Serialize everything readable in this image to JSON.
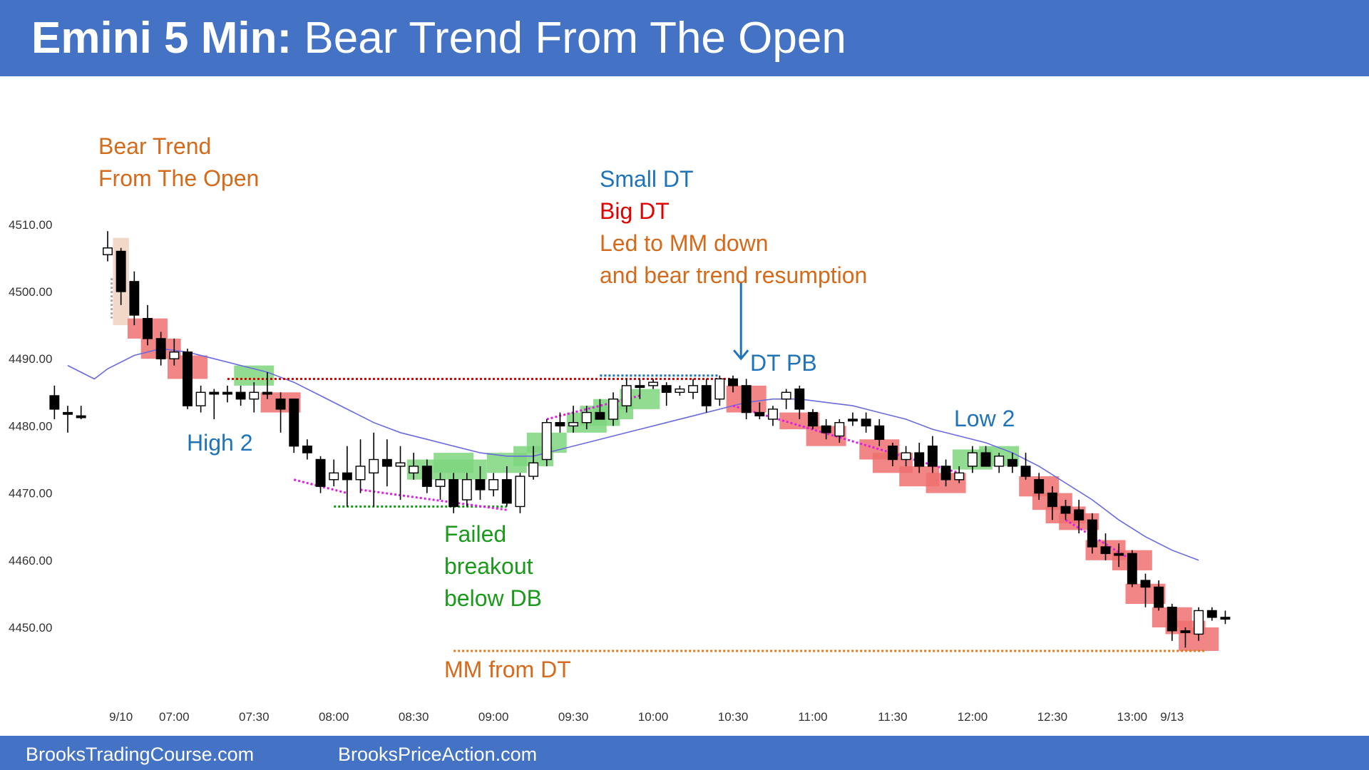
{
  "header": {
    "title_bold": "Emini 5 Min:",
    "title_rest": " Bear Trend From The Open"
  },
  "footer": {
    "left": "BrooksTradingCourse.com",
    "right": "BrooksPriceAction.com"
  },
  "colors": {
    "banner": "#4472c4",
    "bull_body": "#ffffff",
    "bear_body": "#000000",
    "bear_highlight": "#f07070",
    "bull_highlight": "#7ed67e",
    "ema": "#6a6ae0",
    "orange_text": "#d46a1a",
    "blue_text": "#1f73b8",
    "red_text": "#e00000",
    "green_text": "#1a9a1a",
    "magenta_dots": "#e020e0"
  },
  "chart_data": {
    "type": "candlestick",
    "title": "",
    "xlabel": "",
    "ylabel": "",
    "ylim": [
      4442,
      4517
    ],
    "y_ticks": [
      "4450.00",
      "4460.00",
      "4470.00",
      "4480.00",
      "4490.00",
      "4500.00",
      "4510.00"
    ],
    "x_ticks": [
      {
        "label": "9/10",
        "bar": 1
      },
      {
        "label": "07:00",
        "bar": 5
      },
      {
        "label": "07:30",
        "bar": 11
      },
      {
        "label": "08:00",
        "bar": 17
      },
      {
        "label": "08:30",
        "bar": 23
      },
      {
        "label": "09:00",
        "bar": 29
      },
      {
        "label": "09:30",
        "bar": 35
      },
      {
        "label": "10:00",
        "bar": 41
      },
      {
        "label": "10:30",
        "bar": 47
      },
      {
        "label": "11:00",
        "bar": 53
      },
      {
        "label": "11:30",
        "bar": 59
      },
      {
        "label": "12:00",
        "bar": 65
      },
      {
        "label": "12:30",
        "bar": 71
      },
      {
        "label": "13:00",
        "bar": 77
      },
      {
        "label": "9/13",
        "bar": 80
      }
    ],
    "previous_day_bars": [
      {
        "o": 4484.5,
        "h": 4486,
        "l": 4481,
        "c": 4482.5
      },
      {
        "o": 4482,
        "h": 4483,
        "l": 4479,
        "c": 4482
      },
      {
        "o": 4481.5,
        "h": 4483,
        "l": 4481,
        "c": 4481.5
      }
    ],
    "bars": [
      {
        "o": 4505.5,
        "h": 4509,
        "l": 4504.5,
        "c": 4506.5
      },
      {
        "o": 4506,
        "h": 4506.5,
        "l": 4498,
        "c": 4500
      },
      {
        "o": 4501.5,
        "h": 4503,
        "l": 4495,
        "c": 4496.5
      },
      {
        "o": 4496,
        "h": 4498,
        "l": 4492,
        "c": 4493
      },
      {
        "o": 4493,
        "h": 4494,
        "l": 4489,
        "c": 4490
      },
      {
        "o": 4490,
        "h": 4493,
        "l": 4489,
        "c": 4491
      },
      {
        "o": 4491,
        "h": 4491.5,
        "l": 4482.5,
        "c": 4483
      },
      {
        "o": 4483,
        "h": 4486,
        "l": 4482,
        "c": 4485
      },
      {
        "o": 4485,
        "h": 4485.5,
        "l": 4481,
        "c": 4485
      },
      {
        "o": 4485,
        "h": 4486,
        "l": 4483.5,
        "c": 4485
      },
      {
        "o": 4485,
        "h": 4486,
        "l": 4483,
        "c": 4484
      },
      {
        "o": 4484,
        "h": 4486.5,
        "l": 4482,
        "c": 4485
      },
      {
        "o": 4485,
        "h": 4488,
        "l": 4484,
        "c": 4485
      },
      {
        "o": 4484,
        "h": 4485,
        "l": 4479,
        "c": 4482.5
      },
      {
        "o": 4484,
        "h": 4484,
        "l": 4476,
        "c": 4477
      },
      {
        "o": 4477,
        "h": 4478,
        "l": 4475,
        "c": 4476
      },
      {
        "o": 4475,
        "h": 4475.5,
        "l": 4470,
        "c": 4471
      },
      {
        "o": 4472,
        "h": 4475,
        "l": 4471,
        "c": 4473
      },
      {
        "o": 4473,
        "h": 4477,
        "l": 4468,
        "c": 4472
      },
      {
        "o": 4472,
        "h": 4478,
        "l": 4470,
        "c": 4474
      },
      {
        "o": 4473,
        "h": 4479,
        "l": 4468,
        "c": 4475
      },
      {
        "o": 4475,
        "h": 4478,
        "l": 4471,
        "c": 4474
      },
      {
        "o": 4474,
        "h": 4477,
        "l": 4469,
        "c": 4474.5
      },
      {
        "o": 4473,
        "h": 4476,
        "l": 4472,
        "c": 4474
      },
      {
        "o": 4474,
        "h": 4475,
        "l": 4470,
        "c": 4471
      },
      {
        "o": 4471,
        "h": 4473,
        "l": 4469,
        "c": 4472
      },
      {
        "o": 4472,
        "h": 4473,
        "l": 4467,
        "c": 4468
      },
      {
        "o": 4469,
        "h": 4473,
        "l": 4468,
        "c": 4472
      },
      {
        "o": 4472,
        "h": 4474,
        "l": 4469,
        "c": 4470.5
      },
      {
        "o": 4470.5,
        "h": 4473,
        "l": 4469.5,
        "c": 4472
      },
      {
        "o": 4472,
        "h": 4474,
        "l": 4468,
        "c": 4468.5
      },
      {
        "o": 4468,
        "h": 4473,
        "l": 4467,
        "c": 4472.5
      },
      {
        "o": 4472.5,
        "h": 4477,
        "l": 4472,
        "c": 4474.5
      },
      {
        "o": 4475,
        "h": 4481,
        "l": 4474,
        "c": 4480.5
      },
      {
        "o": 4480.5,
        "h": 4482,
        "l": 4479,
        "c": 4480
      },
      {
        "o": 4480,
        "h": 4483,
        "l": 4479,
        "c": 4480.5
      },
      {
        "o": 4480.5,
        "h": 4483,
        "l": 4479.5,
        "c": 4482
      },
      {
        "o": 4482,
        "h": 4484,
        "l": 4481,
        "c": 4481
      },
      {
        "o": 4481,
        "h": 4485,
        "l": 4480,
        "c": 4484
      },
      {
        "o": 4483,
        "h": 4487,
        "l": 4482,
        "c": 4486
      },
      {
        "o": 4486,
        "h": 4487,
        "l": 4484,
        "c": 4486
      },
      {
        "o": 4486,
        "h": 4487,
        "l": 4485.5,
        "c": 4486.5
      },
      {
        "o": 4486,
        "h": 4486.5,
        "l": 4483,
        "c": 4485
      },
      {
        "o": 4485,
        "h": 4486,
        "l": 4484.5,
        "c": 4485.5
      },
      {
        "o": 4485,
        "h": 4487,
        "l": 4484,
        "c": 4486
      },
      {
        "o": 4486,
        "h": 4487,
        "l": 4482,
        "c": 4483
      },
      {
        "o": 4484,
        "h": 4487.5,
        "l": 4483,
        "c": 4487
      },
      {
        "o": 4487,
        "h": 4487.5,
        "l": 4485,
        "c": 4486
      },
      {
        "o": 4486,
        "h": 4487,
        "l": 4481,
        "c": 4482
      },
      {
        "o": 4482,
        "h": 4483.5,
        "l": 4481,
        "c": 4481.5
      },
      {
        "o": 4481,
        "h": 4483,
        "l": 4480,
        "c": 4482.5
      },
      {
        "o": 4484,
        "h": 4485.5,
        "l": 4482.5,
        "c": 4485
      },
      {
        "o": 4485.5,
        "h": 4486,
        "l": 4481,
        "c": 4482.5
      },
      {
        "o": 4482,
        "h": 4482.5,
        "l": 4479.5,
        "c": 4480
      },
      {
        "o": 4480,
        "h": 4481,
        "l": 4478,
        "c": 4479
      },
      {
        "o": 4478.5,
        "h": 4481,
        "l": 4477.5,
        "c": 4480.5
      },
      {
        "o": 4481,
        "h": 4482,
        "l": 4480,
        "c": 4481
      },
      {
        "o": 4481,
        "h": 4482,
        "l": 4479,
        "c": 4480
      },
      {
        "o": 4480,
        "h": 4481,
        "l": 4477,
        "c": 4478
      },
      {
        "o": 4477,
        "h": 4477.5,
        "l": 4474,
        "c": 4475
      },
      {
        "o": 4475,
        "h": 4477,
        "l": 4474,
        "c": 4476
      },
      {
        "o": 4476,
        "h": 4477.5,
        "l": 4473,
        "c": 4474
      },
      {
        "o": 4477,
        "h": 4478.5,
        "l": 4473,
        "c": 4474
      },
      {
        "o": 4474,
        "h": 4475,
        "l": 4471,
        "c": 4472
      },
      {
        "o": 4472,
        "h": 4474,
        "l": 4471.5,
        "c": 4473
      },
      {
        "o": 4474,
        "h": 4477,
        "l": 4473,
        "c": 4476
      },
      {
        "o": 4476,
        "h": 4477,
        "l": 4474,
        "c": 4474
      },
      {
        "o": 4474,
        "h": 4476,
        "l": 4473,
        "c": 4475.5
      },
      {
        "o": 4475,
        "h": 4476,
        "l": 4473,
        "c": 4474
      },
      {
        "o": 4474,
        "h": 4476,
        "l": 4472,
        "c": 4472.5
      },
      {
        "o": 4472,
        "h": 4473,
        "l": 4469,
        "c": 4470
      },
      {
        "o": 4470,
        "h": 4471,
        "l": 4466,
        "c": 4468
      },
      {
        "o": 4468,
        "h": 4469,
        "l": 4466,
        "c": 4467
      },
      {
        "o": 4467.5,
        "h": 4469,
        "l": 4464,
        "c": 4466
      },
      {
        "o": 4466,
        "h": 4467,
        "l": 4461,
        "c": 4462
      },
      {
        "o": 4462,
        "h": 4464,
        "l": 4460,
        "c": 4461
      },
      {
        "o": 4461,
        "h": 4462.5,
        "l": 4459,
        "c": 4461
      },
      {
        "o": 4461,
        "h": 4461.5,
        "l": 4456,
        "c": 4456.5
      },
      {
        "o": 4457,
        "h": 4458,
        "l": 4453,
        "c": 4456
      },
      {
        "o": 4456,
        "h": 4457,
        "l": 4452.5,
        "c": 4453
      },
      {
        "o": 4453,
        "h": 4453.5,
        "l": 4448,
        "c": 4449.5
      },
      {
        "o": 4449.5,
        "h": 4450,
        "l": 4447,
        "c": 4449.5
      },
      {
        "o": 4449,
        "h": 4453,
        "l": 4448,
        "c": 4452.5
      },
      {
        "o": 4452.5,
        "h": 4453,
        "l": 4451,
        "c": 4451.5
      },
      {
        "o": 4451.5,
        "h": 4452.5,
        "l": 4450.5,
        "c": 4451.5
      }
    ],
    "ema": [
      [
        -3,
        4489
      ],
      [
        -1,
        4487
      ],
      [
        0,
        4488.5
      ],
      [
        2,
        4490.5
      ],
      [
        4,
        4491.5
      ],
      [
        6,
        4491
      ],
      [
        8,
        4490
      ],
      [
        10,
        4489
      ],
      [
        12,
        4488
      ],
      [
        14,
        4486.5
      ],
      [
        16,
        4484.5
      ],
      [
        18,
        4482.5
      ],
      [
        20,
        4480.5
      ],
      [
        22,
        4479
      ],
      [
        24,
        4478
      ],
      [
        26,
        4477
      ],
      [
        28,
        4476
      ],
      [
        30,
        4475.5
      ],
      [
        32,
        4475.5
      ],
      [
        34,
        4476.5
      ],
      [
        36,
        4477.5
      ],
      [
        38,
        4478.5
      ],
      [
        40,
        4479.5
      ],
      [
        42,
        4480.5
      ],
      [
        44,
        4481.5
      ],
      [
        46,
        4482.5
      ],
      [
        48,
        4483.5
      ],
      [
        50,
        4484
      ],
      [
        52,
        4484
      ],
      [
        54,
        4483.5
      ],
      [
        56,
        4483
      ],
      [
        58,
        4482
      ],
      [
        60,
        4481
      ],
      [
        62,
        4479.5
      ],
      [
        64,
        4478.5
      ],
      [
        66,
        4477.5
      ],
      [
        68,
        4476
      ],
      [
        70,
        4474
      ],
      [
        72,
        4471.5
      ],
      [
        74,
        4469
      ],
      [
        76,
        4466
      ],
      [
        78,
        4463.5
      ],
      [
        80,
        4461.5
      ],
      [
        82,
        4460
      ]
    ],
    "bear_highlights": [
      {
        "bar": 3,
        "lo": 4493,
        "hi": 4496
      },
      {
        "bar": 4,
        "lo": 4490,
        "hi": 4493
      },
      {
        "bar": 6,
        "lo": 4487,
        "hi": 4490.5
      },
      {
        "bar": 13,
        "lo": 4482,
        "hi": 4485
      },
      {
        "bar": 48,
        "lo": 4482,
        "hi": 4486
      },
      {
        "bar": 52,
        "lo": 4479.5,
        "hi": 4482
      },
      {
        "bar": 54,
        "lo": 4477,
        "hi": 4480
      },
      {
        "bar": 58,
        "lo": 4475,
        "hi": 4478
      },
      {
        "bar": 59,
        "lo": 4473,
        "hi": 4476
      },
      {
        "bar": 61,
        "lo": 4471,
        "hi": 4474
      },
      {
        "bar": 63,
        "lo": 4470,
        "hi": 4473
      },
      {
        "bar": 70,
        "lo": 4469.5,
        "hi": 4472.5
      },
      {
        "bar": 71,
        "lo": 4467.5,
        "hi": 4470
      },
      {
        "bar": 72,
        "lo": 4465.5,
        "hi": 4468
      },
      {
        "bar": 73,
        "lo": 4464.5,
        "hi": 4467
      },
      {
        "bar": 75,
        "lo": 4460,
        "hi": 4463
      },
      {
        "bar": 77,
        "lo": 4458.5,
        "hi": 4461.5
      },
      {
        "bar": 78,
        "lo": 4453.5,
        "hi": 4456.5
      },
      {
        "bar": 80,
        "lo": 4450,
        "hi": 4453
      },
      {
        "bar": 81,
        "lo": 4449,
        "hi": 4451
      },
      {
        "bar": 82,
        "lo": 4446.5,
        "hi": 4450
      }
    ],
    "bull_highlights": [
      {
        "bar": 11,
        "lo": 4486,
        "hi": 4489
      },
      {
        "bar": 24,
        "lo": 4472,
        "hi": 4475
      },
      {
        "bar": 26,
        "lo": 4473,
        "hi": 4476
      },
      {
        "bar": 27,
        "lo": 4472,
        "hi": 4475
      },
      {
        "bar": 30,
        "lo": 4473,
        "hi": 4476
      },
      {
        "bar": 32,
        "lo": 4474,
        "hi": 4477
      },
      {
        "bar": 33,
        "lo": 4476,
        "hi": 4479
      },
      {
        "bar": 36,
        "lo": 4479,
        "hi": 4482
      },
      {
        "bar": 37,
        "lo": 4480,
        "hi": 4483
      },
      {
        "bar": 38,
        "lo": 4481,
        "hi": 4484
      },
      {
        "bar": 40,
        "lo": 4482.5,
        "hi": 4485.5
      },
      {
        "bar": 65,
        "lo": 4473.5,
        "hi": 4476.5
      },
      {
        "bar": 67,
        "lo": 4474,
        "hi": 4477
      }
    ],
    "opening_shade": {
      "from_bar": 0.4,
      "to_bar": 1.6,
      "lo": 4495,
      "hi": 4508
    },
    "lines": [
      {
        "kind": "red-dotted",
        "from": [
          9,
          4487
        ],
        "to": [
          47,
          4487
        ]
      },
      {
        "kind": "blue-dotted",
        "from": [
          37,
          4487.5
        ],
        "to": [
          46,
          4487.5
        ]
      },
      {
        "kind": "green-dotted",
        "from": [
          17,
          4468
        ],
        "to": [
          30,
          4468
        ]
      },
      {
        "kind": "orange-dotted",
        "from": [
          26,
          4446.5
        ],
        "to": [
          82.5,
          4446.5
        ]
      },
      {
        "kind": "magenta-dotted",
        "from": [
          14,
          4472
        ],
        "to": [
          18,
          4470
        ]
      },
      {
        "kind": "magenta-dotted",
        "from": [
          19,
          4470.5
        ],
        "to": [
          30,
          4467.5
        ]
      },
      {
        "kind": "magenta-dotted",
        "from": [
          33,
          4481
        ],
        "to": [
          40,
          4484.5
        ]
      },
      {
        "kind": "magenta-dotted",
        "from": [
          47,
          4483
        ],
        "to": [
          64,
          4473
        ]
      },
      {
        "kind": "magenta-dotted",
        "from": [
          72,
          4466
        ],
        "to": [
          77,
          4460
        ]
      },
      {
        "kind": "grey-dotted",
        "from": [
          0.3,
          4502
        ],
        "to": [
          0.3,
          4496
        ]
      }
    ],
    "arrow": {
      "bar": 47.6,
      "from": 4501.5,
      "to": 4490
    },
    "annotations": {
      "bear_trend": [
        "Bear Trend",
        "From The Open"
      ],
      "small_dt": "Small DT",
      "big_dt": "Big DT",
      "led_to": [
        "Led to MM down",
        "and bear trend resumption"
      ],
      "dt_pb": "DT PB",
      "high2": "High 2",
      "low2": "Low 2",
      "failed": [
        "Failed",
        "breakout",
        "below DB"
      ],
      "mm_from_dt": "MM from DT"
    }
  }
}
